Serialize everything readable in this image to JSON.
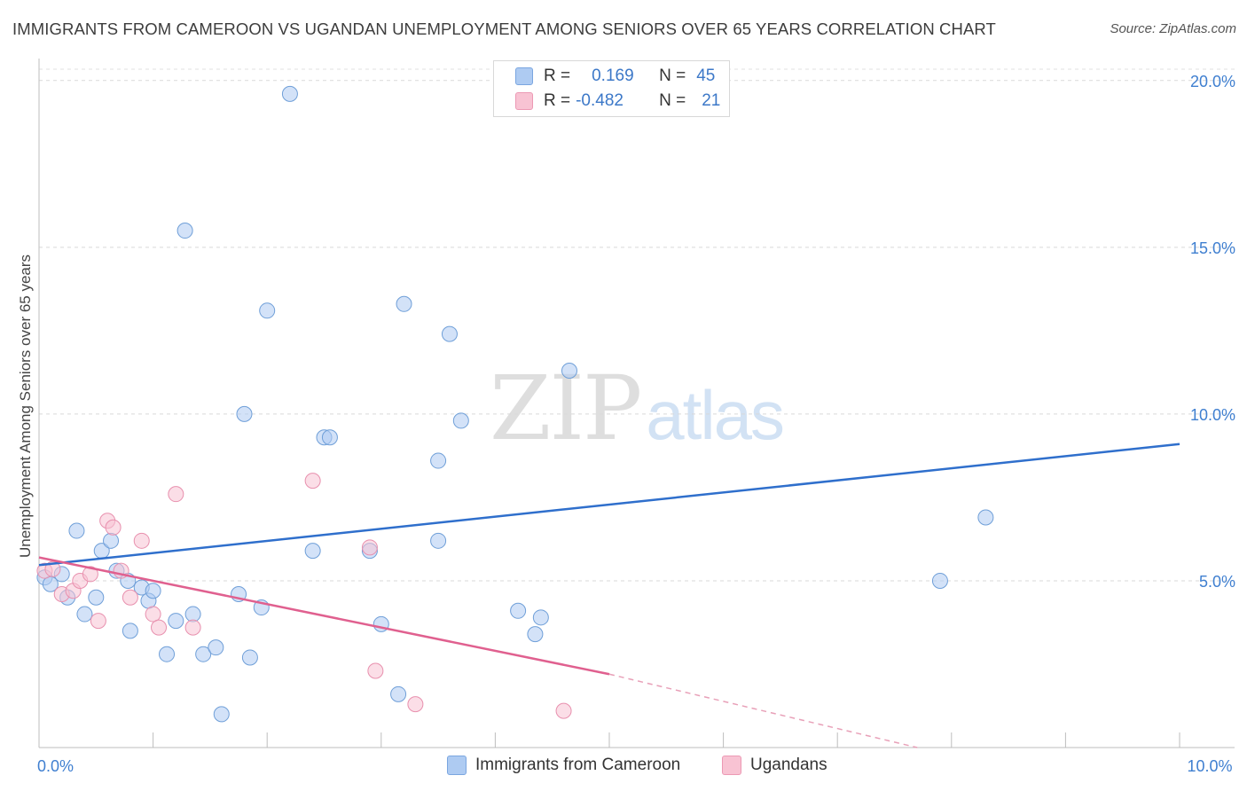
{
  "title": "IMMIGRANTS FROM CAMEROON VS UGANDAN UNEMPLOYMENT AMONG SENIORS OVER 65 YEARS CORRELATION CHART",
  "source": "Source: ZipAtlas.com",
  "watermark": {
    "zip": "ZIP",
    "atlas": "atlas"
  },
  "legend": {
    "rows": [
      {
        "r_label": "R =",
        "r_value": "0.169",
        "n_label": "N =",
        "n_value": "45",
        "color": "#aecbf2"
      },
      {
        "r_label": "R =",
        "r_value": "-0.482",
        "n_label": "N =",
        "n_value": "21",
        "color": "#f8c3d3"
      }
    ]
  },
  "bottom_legend": [
    {
      "label": "Immigrants from Cameroon",
      "color": "#aecbf2"
    },
    {
      "label": "Ugandans",
      "color": "#f8c3d3"
    }
  ],
  "chart_data": {
    "type": "scatter",
    "title": "IMMIGRANTS FROM CAMEROON VS UGANDAN UNEMPLOYMENT AMONG SENIORS OVER 65 YEARS CORRELATION CHART",
    "xlabel": "",
    "ylabel": "Unemployment Among Seniors over 65 years",
    "xlim": [
      0,
      10
    ],
    "ylim": [
      0,
      20.5
    ],
    "x_tick_labels": [
      {
        "value": 0,
        "label": "0.0%"
      },
      {
        "value": 10,
        "label": "10.0%"
      }
    ],
    "y_tick_labels": [
      {
        "value": 5,
        "label": "5.0%"
      },
      {
        "value": 10,
        "label": "10.0%"
      },
      {
        "value": 15,
        "label": "15.0%"
      },
      {
        "value": 20,
        "label": "20.0%"
      }
    ],
    "x_minor_ticks": [
      1,
      2,
      3,
      4,
      5,
      6,
      7,
      8,
      9,
      10
    ],
    "grid": true,
    "series": [
      {
        "name": "Immigrants from Cameroon",
        "color": "#aecbf2",
        "stroke": "#6f9fd8",
        "points": [
          [
            0.05,
            5.1
          ],
          [
            0.1,
            4.9
          ],
          [
            0.2,
            5.2
          ],
          [
            0.25,
            4.5
          ],
          [
            0.33,
            6.5
          ],
          [
            0.4,
            4.0
          ],
          [
            0.5,
            4.5
          ],
          [
            0.55,
            5.9
          ],
          [
            0.63,
            6.2
          ],
          [
            0.68,
            5.3
          ],
          [
            0.78,
            5.0
          ],
          [
            0.8,
            3.5
          ],
          [
            0.9,
            4.8
          ],
          [
            0.96,
            4.4
          ],
          [
            1.0,
            4.7
          ],
          [
            1.12,
            2.8
          ],
          [
            1.2,
            3.8
          ],
          [
            1.28,
            15.5
          ],
          [
            1.35,
            4.0
          ],
          [
            1.44,
            2.8
          ],
          [
            1.55,
            3.0
          ],
          [
            1.6,
            1.0
          ],
          [
            1.75,
            4.6
          ],
          [
            1.8,
            10.0
          ],
          [
            1.85,
            2.7
          ],
          [
            1.95,
            4.2
          ],
          [
            2.0,
            13.1
          ],
          [
            2.2,
            19.6
          ],
          [
            2.4,
            5.9
          ],
          [
            2.5,
            9.3
          ],
          [
            2.55,
            9.3
          ],
          [
            2.9,
            5.9
          ],
          [
            3.0,
            3.7
          ],
          [
            3.15,
            1.6
          ],
          [
            3.2,
            13.3
          ],
          [
            3.5,
            8.6
          ],
          [
            3.5,
            6.2
          ],
          [
            3.6,
            12.4
          ],
          [
            3.7,
            9.8
          ],
          [
            4.2,
            4.1
          ],
          [
            4.35,
            3.4
          ],
          [
            4.4,
            3.9
          ],
          [
            4.65,
            11.3
          ],
          [
            7.9,
            5.0
          ],
          [
            8.3,
            6.9
          ]
        ],
        "trend": {
          "x": [
            0,
            10
          ],
          "y": [
            5.47,
            9.1
          ],
          "style": "solid"
        }
      },
      {
        "name": "Ugandans",
        "color": "#f8c3d3",
        "stroke": "#e890ae",
        "points": [
          [
            0.05,
            5.3
          ],
          [
            0.12,
            5.35
          ],
          [
            0.2,
            4.6
          ],
          [
            0.3,
            4.7
          ],
          [
            0.36,
            5.0
          ],
          [
            0.45,
            5.2
          ],
          [
            0.52,
            3.8
          ],
          [
            0.6,
            6.8
          ],
          [
            0.65,
            6.6
          ],
          [
            0.72,
            5.3
          ],
          [
            0.8,
            4.5
          ],
          [
            0.9,
            6.2
          ],
          [
            1.0,
            4.0
          ],
          [
            1.05,
            3.6
          ],
          [
            1.2,
            7.6
          ],
          [
            1.35,
            3.6
          ],
          [
            2.4,
            8.0
          ],
          [
            2.9,
            6.0
          ],
          [
            2.95,
            2.3
          ],
          [
            3.3,
            1.3
          ],
          [
            4.6,
            1.1
          ]
        ],
        "trend": {
          "x": [
            0,
            5.0
          ],
          "y": [
            5.7,
            2.2
          ],
          "style": "solid",
          "extension": {
            "x": [
              5.0,
              7.7
            ],
            "y": [
              2.2,
              0.0
            ],
            "style": "dashed"
          }
        }
      }
    ]
  }
}
